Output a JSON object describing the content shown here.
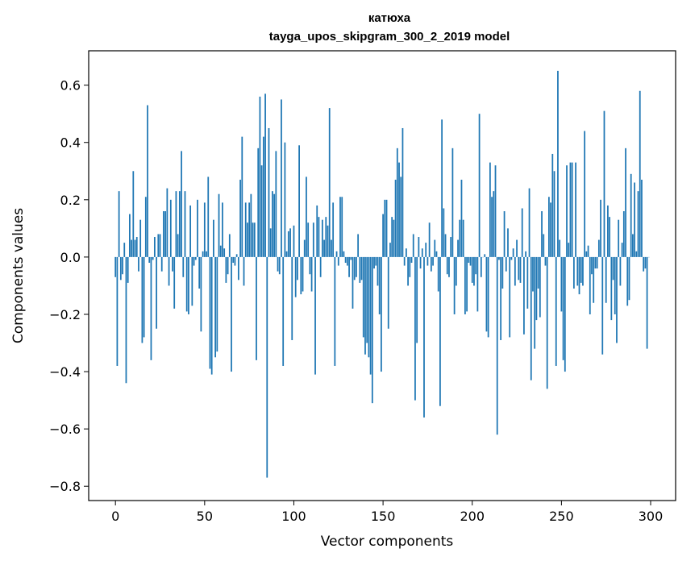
{
  "chart_data": {
    "type": "bar",
    "title": "катюха",
    "subtitle": "tayga_upos_skipgram_300_2_2019 model",
    "xlabel": "Vector components",
    "ylabel": "Components values",
    "xlim": [
      -15,
      314
    ],
    "ylim": [
      -0.85,
      0.72
    ],
    "xticks": [
      0,
      50,
      100,
      150,
      200,
      250,
      300
    ],
    "yticks": [
      -0.8,
      -0.6,
      -0.4,
      -0.2,
      0.0,
      0.2,
      0.4,
      0.6
    ],
    "ytick_labels": [
      "−0.8",
      "−0.6",
      "−0.4",
      "−0.2",
      "0.0",
      "0.2",
      "0.4",
      "0.6"
    ],
    "bar_color": "#1f77b4",
    "grid": false,
    "values": [
      -0.07,
      -0.38,
      0.23,
      -0.08,
      -0.06,
      0.05,
      -0.44,
      -0.09,
      0.15,
      0.06,
      0.3,
      0.06,
      0.07,
      -0.05,
      0.13,
      -0.3,
      -0.28,
      0.21,
      0.53,
      -0.02,
      -0.36,
      -0.01,
      0.07,
      -0.25,
      0.08,
      0.08,
      -0.05,
      0.16,
      0.16,
      0.24,
      -0.1,
      0.2,
      -0.05,
      -0.18,
      0.23,
      0.08,
      0.23,
      0.37,
      -0.07,
      0.23,
      -0.19,
      -0.2,
      0.18,
      -0.17,
      -0.03,
      -0.01,
      0.2,
      -0.11,
      -0.26,
      0.02,
      0.19,
      0.02,
      0.28,
      -0.39,
      -0.41,
      0.13,
      -0.35,
      -0.33,
      0.22,
      0.04,
      0.19,
      0.03,
      -0.09,
      -0.06,
      0.08,
      -0.4,
      -0.02,
      -0.03,
      0.01,
      -0.08,
      0.27,
      0.42,
      -0.1,
      0.19,
      0.12,
      0.19,
      0.22,
      0.12,
      0.12,
      -0.36,
      0.38,
      0.56,
      0.32,
      0.42,
      0.57,
      -0.77,
      0.45,
      0.1,
      0.23,
      0.22,
      0.37,
      -0.05,
      -0.06,
      0.55,
      -0.38,
      0.4,
      0.02,
      0.09,
      0.1,
      -0.29,
      0.11,
      -0.14,
      -0.08,
      0.39,
      -0.13,
      -0.12,
      0.06,
      0.28,
      0.12,
      -0.06,
      -0.12,
      0.12,
      -0.41,
      0.18,
      0.14,
      -0.07,
      0.13,
      0.06,
      0.14,
      0.11,
      0.52,
      0.06,
      0.19,
      -0.38,
      0.02,
      -0.03,
      0.21,
      0.21,
      0.02,
      -0.02,
      -0.03,
      -0.07,
      -0.01,
      -0.18,
      -0.08,
      -0.07,
      0.08,
      -0.09,
      -0.08,
      -0.28,
      -0.34,
      -0.3,
      -0.35,
      -0.41,
      -0.51,
      -0.04,
      -0.03,
      -0.1,
      -0.2,
      -0.4,
      0.15,
      0.2,
      0.2,
      -0.25,
      0.05,
      0.14,
      0.13,
      0.27,
      0.38,
      0.33,
      0.28,
      0.45,
      -0.03,
      0.03,
      -0.1,
      -0.07,
      -0.02,
      0.08,
      -0.5,
      -0.3,
      0.07,
      -0.04,
      0.03,
      -0.56,
      0.05,
      -0.03,
      0.12,
      -0.05,
      -0.03,
      0.06,
      0.02,
      -0.12,
      -0.52,
      0.48,
      0.17,
      0.08,
      -0.06,
      -0.07,
      0.07,
      0.38,
      -0.2,
      -0.1,
      0.06,
      0.13,
      0.27,
      0.13,
      -0.2,
      -0.19,
      -0.02,
      -0.03,
      -0.09,
      -0.1,
      -0.06,
      -0.19,
      0.5,
      -0.07,
      0.0,
      0.01,
      -0.26,
      -0.28,
      0.33,
      0.21,
      0.23,
      0.32,
      -0.62,
      -0.01,
      -0.29,
      -0.11,
      0.16,
      -0.05,
      0.1,
      -0.28,
      -0.01,
      0.03,
      -0.1,
      0.06,
      -0.08,
      -0.09,
      0.17,
      -0.27,
      0.02,
      -0.18,
      0.24,
      -0.43,
      -0.12,
      -0.32,
      -0.22,
      -0.11,
      -0.21,
      0.16,
      0.08,
      -0.03,
      -0.46,
      0.21,
      0.19,
      0.36,
      0.3,
      -0.38,
      0.65,
      0.06,
      -0.19,
      -0.36,
      -0.4,
      0.32,
      0.05,
      0.33,
      0.33,
      -0.11,
      0.33,
      -0.1,
      -0.13,
      -0.09,
      -0.1,
      0.44,
      0.02,
      0.04,
      -0.2,
      -0.06,
      -0.16,
      -0.04,
      -0.04,
      0.06,
      0.2,
      -0.34,
      0.51,
      -0.16,
      0.18,
      0.14,
      -0.22,
      -0.08,
      -0.2,
      -0.3,
      0.13,
      -0.1,
      0.05,
      0.16,
      0.38,
      -0.17,
      -0.15,
      0.29,
      0.08,
      0.26,
      0.02,
      0.23,
      0.58,
      0.27,
      -0.05,
      -0.04,
      -0.32,
      0.0
    ]
  }
}
